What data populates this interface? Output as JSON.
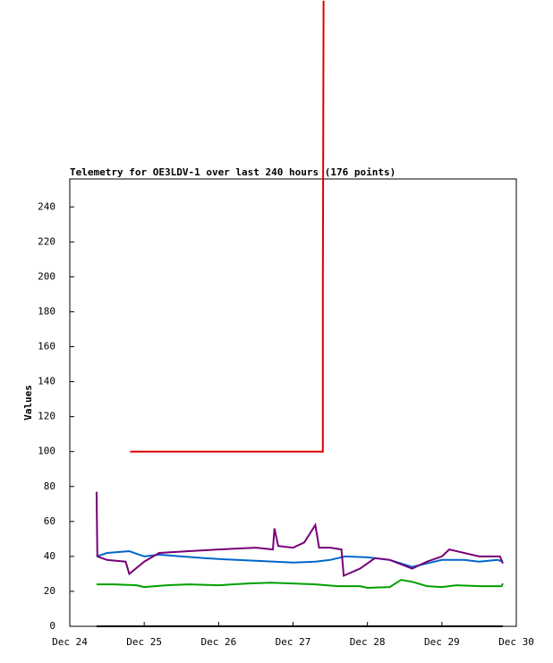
{
  "chart_data": {
    "type": "line",
    "title": "Telemetry for OE3LDV-1 over last 240 hours (176 points)",
    "y_label": "Values",
    "xlim": [
      0,
      6
    ],
    "ylim": [
      0,
      256
    ],
    "xticks": [
      {
        "value": 0,
        "label": "Dec 24"
      },
      {
        "value": 1,
        "label": "Dec 25"
      },
      {
        "value": 2,
        "label": "Dec 26"
      },
      {
        "value": 3,
        "label": "Dec 27"
      },
      {
        "value": 4,
        "label": "Dec 28"
      },
      {
        "value": 5,
        "label": "Dec 29"
      },
      {
        "value": 6,
        "label": "Dec 30"
      }
    ],
    "yticks": [
      0,
      20,
      40,
      60,
      80,
      100,
      120,
      140,
      160,
      180,
      200,
      220,
      240
    ],
    "series": [
      {
        "color": "#dd0000",
        "x": [
          0.81,
          3.4,
          3.4,
          3.41
        ],
        "values": [
          100,
          100,
          190,
          358
        ]
      },
      {
        "color": "#000000",
        "x": [
          0.36,
          5.82
        ],
        "values": [
          0,
          0
        ]
      },
      {
        "color": "#00a000",
        "x": [
          0.36,
          0.6,
          0.9,
          1.0,
          1.3,
          1.6,
          2.0,
          2.4,
          2.7,
          3.0,
          3.3,
          3.6,
          3.9,
          4.0,
          4.3,
          4.45,
          4.6,
          4.8,
          5.0,
          5.2,
          5.5,
          5.8,
          5.82
        ],
        "values": [
          24,
          24,
          23.5,
          22.5,
          23.5,
          24,
          23.5,
          24.5,
          25,
          24.5,
          24,
          23,
          23,
          22,
          22.5,
          26.5,
          25.5,
          23,
          22.5,
          23.5,
          23,
          23,
          24.5
        ]
      },
      {
        "color": "#0066cc",
        "x": [
          0.36,
          0.5,
          0.8,
          1.0,
          1.2,
          1.5,
          1.8,
          2.0,
          2.5,
          3.0,
          3.3,
          3.5,
          3.7,
          4.0,
          4.3,
          4.6,
          4.8,
          5.0,
          5.3,
          5.5,
          5.75,
          5.82
        ],
        "values": [
          40,
          42,
          43,
          40,
          41,
          40,
          39,
          38.5,
          37.5,
          36.5,
          37,
          38,
          40,
          39.5,
          38,
          34,
          36,
          38,
          38,
          37,
          38,
          37
        ]
      },
      {
        "color": "#770077",
        "x": [
          0.36,
          0.37,
          0.5,
          0.75,
          0.8,
          1.0,
          1.2,
          1.6,
          2.0,
          2.5,
          2.73,
          2.75,
          2.8,
          3.0,
          3.15,
          3.3,
          3.35,
          3.5,
          3.65,
          3.68,
          3.9,
          4.1,
          4.3,
          4.6,
          4.8,
          5.0,
          5.1,
          5.5,
          5.78,
          5.82
        ],
        "values": [
          77,
          40,
          38,
          37,
          30,
          37,
          42,
          43,
          44,
          45,
          44,
          56,
          46,
          45,
          48,
          58,
          45,
          45,
          44,
          29,
          33,
          39,
          38,
          33,
          37,
          40,
          44,
          40,
          40,
          36
        ]
      }
    ]
  }
}
